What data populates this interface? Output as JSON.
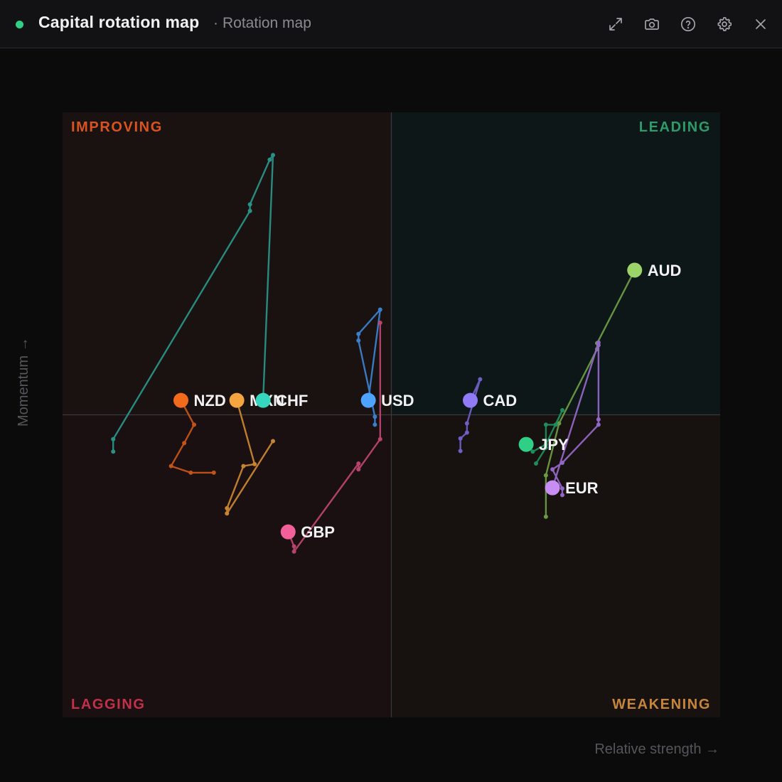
{
  "header": {
    "title": "Capital rotation map",
    "subtitle_sep": "·",
    "subtitle": "Rotation map",
    "status_color": "#2fcf86",
    "buttons": [
      {
        "name": "expand-icon"
      },
      {
        "name": "camera-icon"
      },
      {
        "name": "help-icon"
      },
      {
        "name": "gear-icon"
      },
      {
        "name": "close-icon"
      }
    ]
  },
  "chart_data": {
    "type": "scatter",
    "xlabel": "Relative strength →",
    "ylabel": "Momentum →",
    "quadrants": {
      "top_left": {
        "label": "IMPROVING",
        "color": "#d9531e",
        "bg": "#1a1210"
      },
      "top_right": {
        "label": "LEADING",
        "color": "#2d9b6c",
        "bg": "#0e1717"
      },
      "bottom_left": {
        "label": "LAGGING",
        "color": "#c4304a",
        "bg": "#1a1012"
      },
      "bottom_right": {
        "label": "WEAKENING",
        "color": "#c7853a",
        "bg": "#17110f"
      }
    },
    "xlim": [
      -50,
      50
    ],
    "ylim": [
      -46,
      46
    ],
    "grid": false,
    "series": [
      {
        "name": "NZD",
        "color": "#f26a1b",
        "trail_color": "#c25418",
        "points": [
          [
            -27.0,
            -8.8
          ],
          [
            -30.5,
            -8.8
          ],
          [
            -33.5,
            -7.8
          ],
          [
            -31.5,
            -4.3
          ],
          [
            -30.0,
            -1.5
          ],
          [
            -32.0,
            2.2
          ]
        ]
      },
      {
        "name": "MXN",
        "color": "#f5a540",
        "trail_color": "#c78530",
        "points": [
          [
            -18.0,
            -4.0
          ],
          [
            -25.0,
            -15.0
          ],
          [
            -25.0,
            -14.2
          ],
          [
            -22.5,
            -7.8
          ],
          [
            -20.8,
            -7.5
          ],
          [
            -23.5,
            2.2
          ]
        ]
      },
      {
        "name": "CHF",
        "color": "#35d5c0",
        "trail_color": "#2a9187",
        "points": [
          [
            -42.3,
            -5.6
          ],
          [
            -42.3,
            -3.7
          ],
          [
            -21.5,
            31.0
          ],
          [
            -21.5,
            32.0
          ],
          [
            -18.5,
            38.8
          ],
          [
            -18.0,
            39.5
          ],
          [
            -19.5,
            2.2
          ]
        ]
      },
      {
        "name": "USD",
        "color": "#4da3ff",
        "trail_color": "#3b7fcc",
        "points": [
          [
            -2.5,
            -1.5
          ],
          [
            -2.5,
            -0.3
          ],
          [
            -5.0,
            11.3
          ],
          [
            -5.0,
            12.3
          ],
          [
            -1.7,
            16.0
          ],
          [
            -3.5,
            2.2
          ]
        ]
      },
      {
        "name": "GBP",
        "color": "#f2609a",
        "trail_color": "#b8446e",
        "points": [
          [
            -1.7,
            14.0
          ],
          [
            -1.7,
            -3.7
          ],
          [
            -5.0,
            -8.3
          ],
          [
            -5.0,
            -7.4
          ],
          [
            -14.8,
            -20.8
          ],
          [
            -14.8,
            -20.0
          ],
          [
            -15.7,
            -17.8
          ]
        ]
      },
      {
        "name": "CAD",
        "color": "#8f7bf5",
        "trail_color": "#6e5fc4",
        "points": [
          [
            10.5,
            -5.5
          ],
          [
            10.5,
            -3.6
          ],
          [
            11.5,
            -2.7
          ],
          [
            11.5,
            -1.3
          ],
          [
            13.5,
            5.4
          ],
          [
            12.0,
            2.2
          ]
        ]
      },
      {
        "name": "AUD",
        "color": "#9cd46a",
        "trail_color": "#6b9a45",
        "points": [
          [
            23.5,
            -15.5
          ],
          [
            23.5,
            -9.2
          ],
          [
            25.5,
            -1.3
          ],
          [
            31.3,
            10.0
          ],
          [
            31.3,
            10.9
          ],
          [
            37.0,
            22.0
          ]
        ]
      },
      {
        "name": "JPY",
        "color": "#2fcf86",
        "trail_color": "#1f8c5b",
        "points": [
          [
            22.0,
            -7.4
          ],
          [
            23.5,
            -5.0
          ],
          [
            23.5,
            -1.5
          ],
          [
            25.0,
            -1.5
          ],
          [
            26.0,
            0.7
          ],
          [
            23.5,
            -4.5
          ],
          [
            21.5,
            -5.6
          ],
          [
            20.5,
            -4.5
          ]
        ]
      },
      {
        "name": "EUR",
        "color": "#c78df5",
        "trail_color": "#9166c4",
        "points": [
          [
            26.0,
            -12.2
          ],
          [
            26.0,
            -11.2
          ],
          [
            24.5,
            -8.3
          ],
          [
            26.0,
            -7.3
          ],
          [
            31.5,
            -1.5
          ],
          [
            31.5,
            -0.7
          ],
          [
            31.5,
            10.6
          ],
          [
            31.5,
            11.0
          ],
          [
            24.5,
            -11.1
          ]
        ]
      }
    ]
  }
}
